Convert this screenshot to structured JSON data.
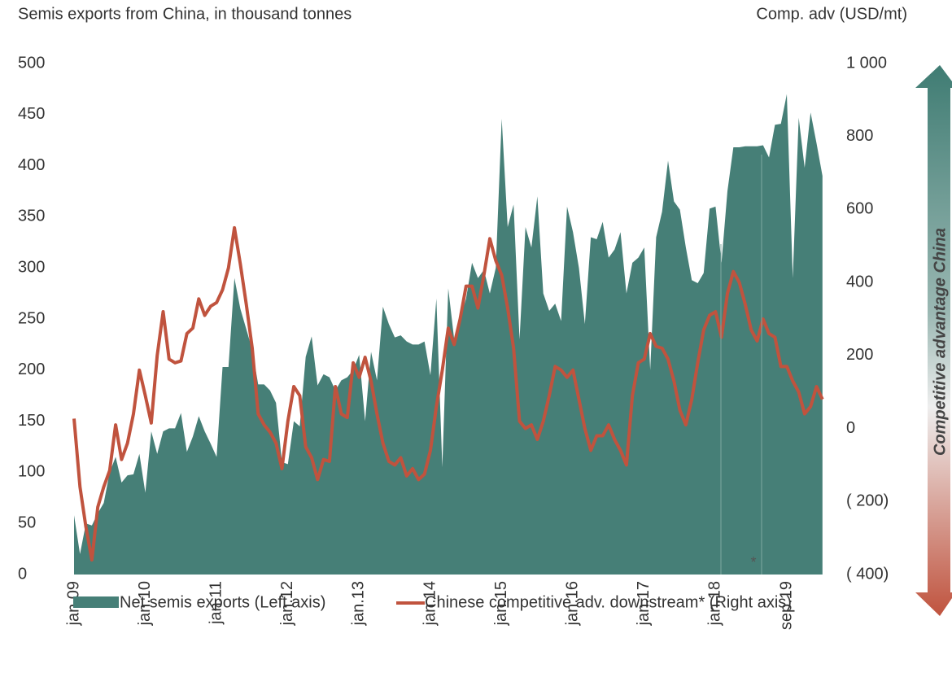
{
  "chart_data": {
    "type": "area-line",
    "title": "Semis exports from China, in thousand tonnes",
    "y2_title": "Comp. adv (USD/mt)",
    "annotation": "Competitive advantage China",
    "footnote_mark": "*",
    "categories": [
      "jan.09",
      null,
      null,
      null,
      null,
      null,
      null,
      null,
      null,
      null,
      null,
      null,
      "jan.10",
      null,
      null,
      null,
      null,
      null,
      null,
      null,
      null,
      null,
      null,
      null,
      "jan.11",
      null,
      null,
      null,
      null,
      null,
      null,
      null,
      null,
      null,
      null,
      null,
      "jan.12",
      null,
      null,
      null,
      null,
      null,
      null,
      null,
      null,
      null,
      null,
      null,
      "jan.13",
      null,
      null,
      null,
      null,
      null,
      null,
      null,
      null,
      null,
      null,
      null,
      "jan.14",
      null,
      null,
      null,
      null,
      null,
      null,
      null,
      null,
      null,
      null,
      null,
      "jan.15",
      null,
      null,
      null,
      null,
      null,
      null,
      null,
      null,
      null,
      null,
      null,
      "jan.16",
      null,
      null,
      null,
      null,
      null,
      null,
      null,
      null,
      null,
      null,
      null,
      "jan.17",
      null,
      null,
      null,
      null,
      null,
      null,
      null,
      null,
      null,
      null,
      null,
      "jan.18",
      null,
      null,
      null,
      null,
      null,
      null,
      null,
      null,
      null,
      null,
      null,
      "sep.19",
      null,
      null,
      null,
      null,
      null,
      null
    ],
    "series": [
      {
        "name": "Net semis exports (Left axis)",
        "color": "#467f77",
        "kind": "area",
        "values": [
          58,
          20,
          50,
          48,
          60,
          70,
          100,
          115,
          90,
          97,
          98,
          118,
          80,
          140,
          118,
          140,
          143,
          143,
          158,
          120,
          135,
          155,
          140,
          128,
          115,
          203,
          203,
          290,
          260,
          240,
          220,
          186,
          186,
          180,
          168,
          110,
          108,
          150,
          145,
          213,
          233,
          185,
          196,
          193,
          180,
          190,
          193,
          200,
          215,
          150,
          218,
          190,
          262,
          245,
          232,
          234,
          228,
          225,
          225,
          228,
          195,
          270,
          105,
          280,
          230,
          250,
          270,
          305,
          290,
          298,
          275,
          300,
          446,
          340,
          362,
          230,
          340,
          320,
          370,
          275,
          258,
          265,
          248,
          360,
          335,
          300,
          245,
          330,
          328,
          345,
          310,
          318,
          335,
          275,
          305,
          310,
          320,
          200,
          330,
          355,
          405,
          365,
          357,
          320,
          288,
          285,
          295,
          358,
          360,
          305,
          375,
          418,
          418,
          419,
          419,
          419,
          420,
          408,
          440,
          441,
          470,
          290,
          447,
          398,
          452,
          422,
          390
        ]
      },
      {
        "name": "Chinese competitive adv. downstream* (Right axis)",
        "color": "#c0533e",
        "kind": "line",
        "axis": "y2",
        "values": [
          27,
          -160,
          -270,
          -360,
          -215,
          -160,
          -115,
          10,
          -85,
          -40,
          40,
          160,
          90,
          15,
          200,
          320,
          190,
          180,
          185,
          260,
          275,
          355,
          310,
          335,
          345,
          380,
          440,
          550,
          450,
          340,
          220,
          40,
          10,
          -10,
          -40,
          -110,
          20,
          115,
          90,
          -50,
          -80,
          -140,
          -85,
          -90,
          115,
          40,
          30,
          180,
          140,
          195,
          130,
          40,
          -40,
          -90,
          -100,
          -80,
          -130,
          -110,
          -140,
          -125,
          -60,
          60,
          160,
          275,
          230,
          300,
          390,
          390,
          330,
          420,
          520,
          460,
          420,
          330,
          220,
          20,
          0,
          10,
          -30,
          20,
          90,
          170,
          160,
          140,
          160,
          80,
          0,
          -60,
          -20,
          -20,
          10,
          -30,
          -60,
          -100,
          90,
          180,
          190,
          260,
          225,
          220,
          190,
          130,
          50,
          10,
          80,
          180,
          270,
          310,
          320,
          250,
          370,
          430,
          400,
          340,
          270,
          240,
          300,
          260,
          250,
          170,
          170,
          130,
          100,
          40,
          60,
          115,
          80
        ]
      }
    ],
    "ylim": [
      0,
      500
    ],
    "yticks": [
      0,
      50,
      100,
      150,
      200,
      250,
      300,
      350,
      400,
      450,
      500
    ],
    "y2lim": [
      -400,
      1000
    ],
    "y2ticks": [
      {
        "value": -400,
        "label": "( 400)"
      },
      {
        "value": -200,
        "label": "( 200)"
      },
      0,
      200,
      400,
      600,
      800,
      {
        "value": 1000,
        "label": "1 000"
      }
    ]
  }
}
